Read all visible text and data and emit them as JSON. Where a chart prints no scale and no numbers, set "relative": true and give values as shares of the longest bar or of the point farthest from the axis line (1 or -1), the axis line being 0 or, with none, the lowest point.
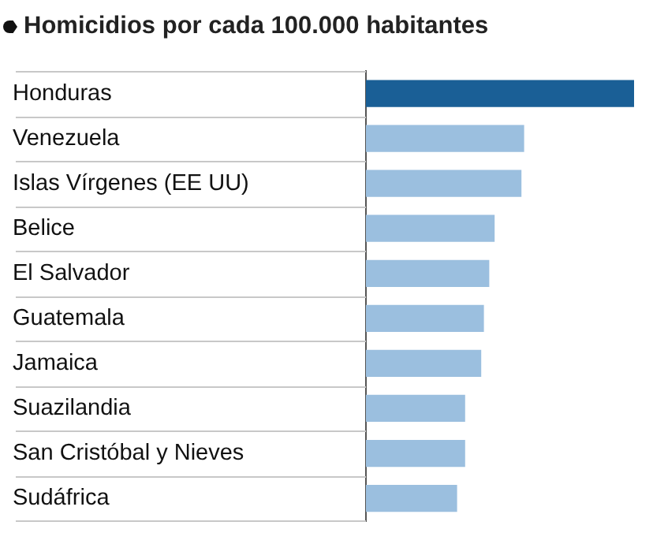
{
  "chart_data": {
    "type": "bar",
    "orientation": "horizontal",
    "relative": true,
    "title": "Homicidios por cada 100.000 habitantes",
    "grid": "y",
    "categories": [
      "Honduras",
      "Venezuela",
      "Islas Vírgenes (EE UU)",
      "Belice",
      "El Salvador",
      "Guatemala",
      "Jamaica",
      "Suazilandia",
      "San Cristóbal y Nieves",
      "Sudáfrica"
    ],
    "values": [
      1,
      0.59,
      0.58,
      0.48,
      0.46,
      0.44,
      0.43,
      0.37,
      0.37,
      0.34
    ],
    "colors": [
      "#1a5f96",
      "#9bbfdf",
      "#9bbfdf",
      "#9bbfdf",
      "#9bbfdf",
      "#9bbfdf",
      "#9bbfdf",
      "#9bbfdf",
      "#9bbfdf",
      "#9bbfdf"
    ]
  }
}
